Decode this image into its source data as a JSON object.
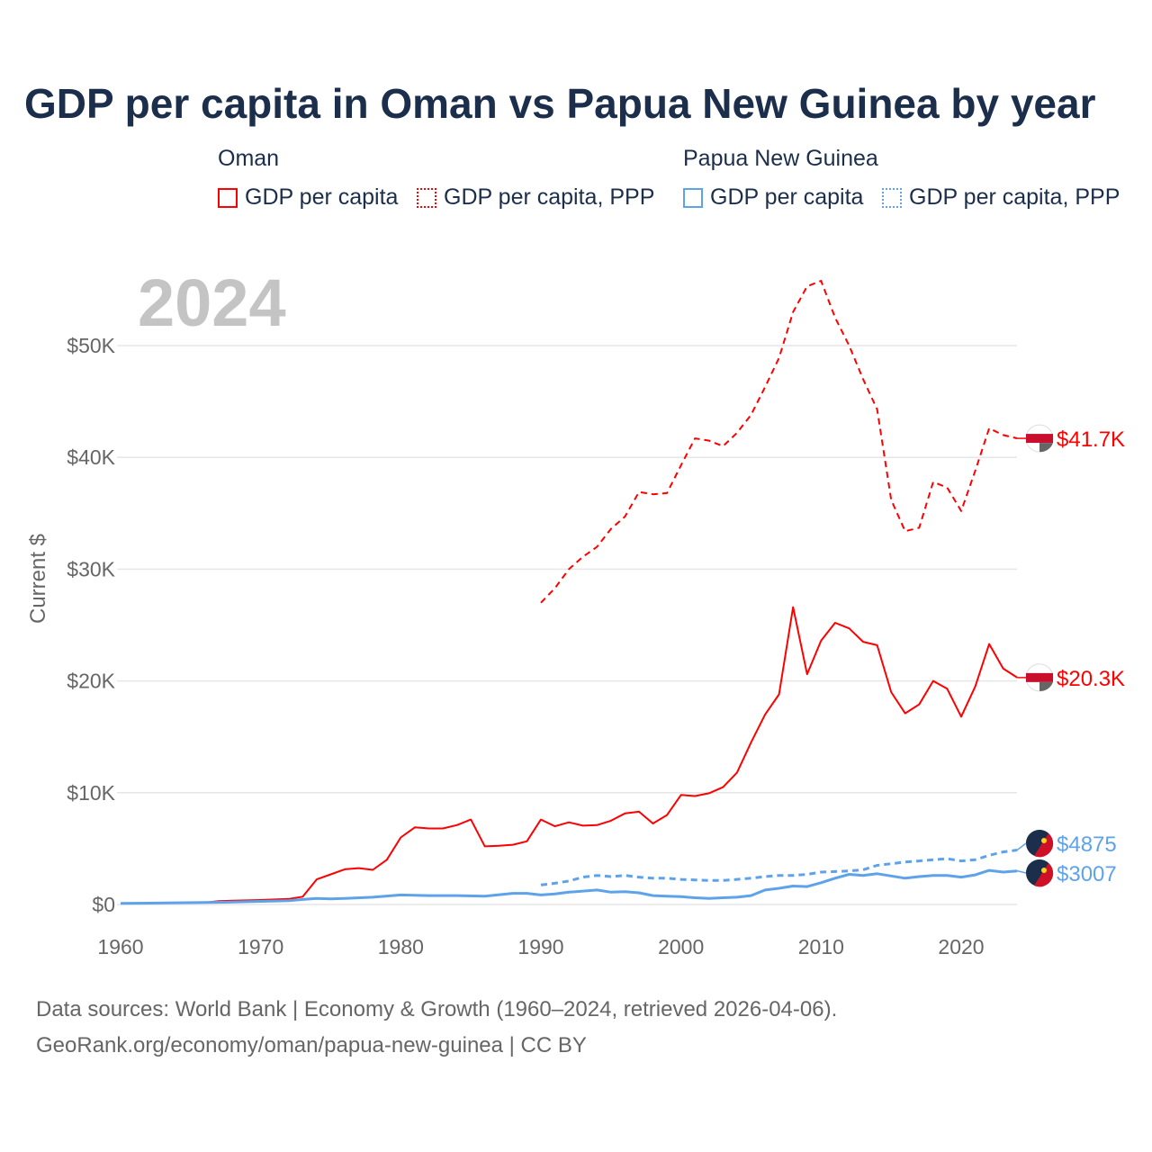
{
  "chart_data": {
    "type": "line",
    "title": "GDP per capita in Oman vs Papua New Guinea by year",
    "year_watermark": "2024",
    "ylabel": "Current $",
    "xlabel": "",
    "xlim": [
      1960,
      2024
    ],
    "ylim": [
      0,
      56000
    ],
    "x_ticks": [
      1960,
      1970,
      1980,
      1990,
      2000,
      2010,
      2020
    ],
    "x_tick_labels": [
      "1960",
      "1970",
      "1980",
      "1990",
      "2000",
      "2010",
      "2020"
    ],
    "y_ticks": [
      0,
      10000,
      20000,
      30000,
      40000,
      50000
    ],
    "y_tick_labels": [
      "$0",
      "$10K",
      "$20K",
      "$30K",
      "$40K",
      "$50K"
    ],
    "grid": true,
    "legend": {
      "placement": "top",
      "groups": [
        {
          "name": "Oman",
          "items": [
            "GDP per capita",
            "GDP per capita, PPP"
          ]
        },
        {
          "name": "Papua New Guinea",
          "items": [
            "GDP per capita",
            "GDP per capita, PPP"
          ]
        }
      ]
    },
    "series": [
      {
        "name": "Oman GDP per capita",
        "color": "#ff0000",
        "dash": false,
        "end_label": "$20.3K",
        "flag": "oman",
        "x": [
          1960,
          1961,
          1962,
          1963,
          1964,
          1965,
          1966,
          1967,
          1968,
          1969,
          1970,
          1971,
          1972,
          1973,
          1974,
          1975,
          1976,
          1977,
          1978,
          1979,
          1980,
          1981,
          1982,
          1983,
          1984,
          1985,
          1986,
          1987,
          1988,
          1989,
          1990,
          1991,
          1992,
          1993,
          1994,
          1995,
          1996,
          1997,
          1998,
          1999,
          2000,
          2001,
          2002,
          2003,
          2004,
          2005,
          2006,
          2007,
          2008,
          2009,
          2010,
          2011,
          2012,
          2013,
          2014,
          2015,
          2016,
          2017,
          2018,
          2019,
          2020,
          2021,
          2022,
          2023,
          2024
        ],
        "values": [
          100,
          110,
          120,
          130,
          140,
          150,
          170,
          300,
          350,
          370,
          400,
          450,
          500,
          700,
          2250,
          2700,
          3150,
          3250,
          3100,
          4000,
          6000,
          6900,
          6800,
          6800,
          7100,
          7600,
          5200,
          5250,
          5350,
          5650,
          7600,
          7000,
          7350,
          7050,
          7100,
          7500,
          8150,
          8300,
          7250,
          8000,
          9800,
          9700,
          9950,
          10500,
          11800,
          14500,
          17000,
          18800,
          26600,
          20600,
          23600,
          25200,
          24700,
          23500,
          23200,
          19000,
          17100,
          17900,
          20000,
          19300,
          16800,
          19500,
          23300,
          21100,
          20300
        ]
      },
      {
        "name": "Oman GDP per capita, PPP",
        "color": "#ff0000",
        "dash": true,
        "end_label": "$41.7K",
        "flag": "oman",
        "x": [
          1990,
          1991,
          1992,
          1993,
          1994,
          1995,
          1996,
          1997,
          1998,
          1999,
          2000,
          2001,
          2002,
          2003,
          2004,
          2005,
          2006,
          2007,
          2008,
          2009,
          2010,
          2011,
          2012,
          2013,
          2014,
          2015,
          2016,
          2017,
          2018,
          2019,
          2020,
          2021,
          2022,
          2023,
          2024
        ],
        "values": [
          27000,
          28300,
          30000,
          31100,
          32000,
          33600,
          34700,
          36900,
          36700,
          36800,
          39300,
          41700,
          41500,
          41000,
          42200,
          43800,
          46300,
          48900,
          53000,
          55300,
          55800,
          52500,
          50000,
          47000,
          44300,
          36200,
          33400,
          33700,
          37800,
          37300,
          35200,
          38800,
          42600,
          42000,
          41700
        ]
      },
      {
        "name": "Papua New Guinea GDP per capita",
        "color": "#5ea3ea",
        "dash": false,
        "end_label": "$3007",
        "flag": "png",
        "x": [
          1960,
          1962,
          1964,
          1966,
          1968,
          1970,
          1972,
          1973,
          1974,
          1975,
          1976,
          1978,
          1980,
          1982,
          1984,
          1986,
          1988,
          1989,
          1990,
          1991,
          1992,
          1993,
          1994,
          1995,
          1996,
          1997,
          1998,
          1999,
          2000,
          2001,
          2002,
          2003,
          2004,
          2005,
          2006,
          2007,
          2008,
          2009,
          2010,
          2011,
          2012,
          2013,
          2014,
          2015,
          2016,
          2017,
          2018,
          2019,
          2020,
          2021,
          2022,
          2023,
          2024
        ],
        "values": [
          100,
          120,
          150,
          180,
          220,
          280,
          350,
          450,
          550,
          500,
          550,
          650,
          850,
          800,
          800,
          750,
          1000,
          1000,
          850,
          950,
          1100,
          1200,
          1300,
          1100,
          1150,
          1050,
          800,
          750,
          700,
          600,
          550,
          600,
          650,
          800,
          1300,
          1450,
          1650,
          1600,
          1950,
          2350,
          2700,
          2600,
          2750,
          2550,
          2350,
          2500,
          2600,
          2600,
          2450,
          2650,
          3050,
          2900,
          3007
        ]
      },
      {
        "name": "Papua New Guinea GDP per capita, PPP",
        "color": "#5ea3ea",
        "dash": true,
        "end_label": "$4875",
        "flag": "png",
        "x": [
          1990,
          1991,
          1992,
          1993,
          1994,
          1995,
          1996,
          1997,
          1998,
          1999,
          2000,
          2001,
          2002,
          2003,
          2004,
          2005,
          2006,
          2007,
          2008,
          2009,
          2010,
          2011,
          2012,
          2013,
          2014,
          2015,
          2016,
          2017,
          2018,
          2019,
          2020,
          2021,
          2022,
          2023,
          2024
        ],
        "values": [
          1750,
          1900,
          2100,
          2450,
          2600,
          2500,
          2600,
          2450,
          2350,
          2350,
          2250,
          2200,
          2150,
          2150,
          2250,
          2350,
          2500,
          2600,
          2600,
          2700,
          2900,
          2950,
          3000,
          3100,
          3500,
          3650,
          3800,
          3900,
          4000,
          4100,
          3900,
          4000,
          4400,
          4700,
          4875
        ]
      }
    ]
  },
  "footer": {
    "sources": "Data sources: World Bank | Economy & Growth (1960–2024, retrieved 2026-04-06).",
    "credit": "GeoRank.org/economy/oman/papua-new-guinea | CC BY"
  }
}
